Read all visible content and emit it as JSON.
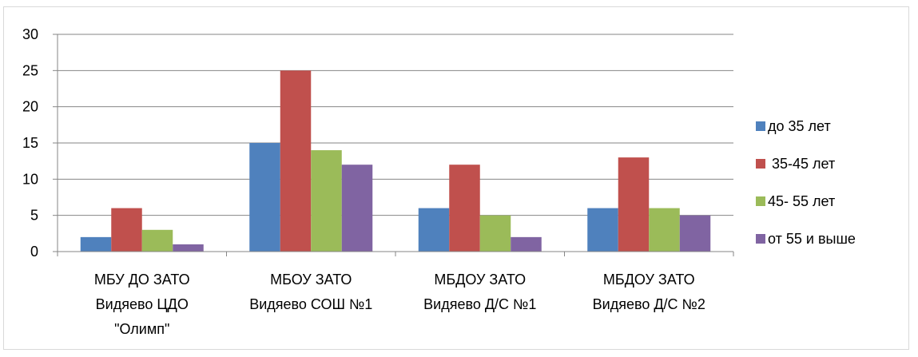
{
  "chart_data": {
    "type": "bar",
    "title": "",
    "xlabel": "",
    "ylabel": "",
    "ylim": [
      0,
      30
    ],
    "yticks": [
      0,
      5,
      10,
      15,
      20,
      25,
      30
    ],
    "grid": true,
    "legend_position": "right",
    "categories": [
      [
        "МБУ ДО ЗАТО",
        "Видяево ЦДО",
        "\"Олимп\""
      ],
      [
        "МБОУ ЗАТО",
        "Видяево СОШ №1"
      ],
      [
        "МБДОУ ЗАТО",
        "Видяево Д/С №1"
      ],
      [
        "МБДОУ ЗАТО",
        "Видяево Д/С №2"
      ]
    ],
    "series": [
      {
        "name": "до 35 лет",
        "color": "#4f81bd",
        "values": [
          2,
          15,
          6,
          6
        ]
      },
      {
        "name": " 35-45 лет",
        "color": "#c0504d",
        "values": [
          6,
          25,
          12,
          13
        ]
      },
      {
        "name": "45- 55 лет",
        "color": "#9bbb59",
        "values": [
          3,
          14,
          5,
          6
        ]
      },
      {
        "name": "от 55 и выше",
        "color": "#8064a2",
        "values": [
          1,
          12,
          2,
          5
        ]
      }
    ]
  }
}
